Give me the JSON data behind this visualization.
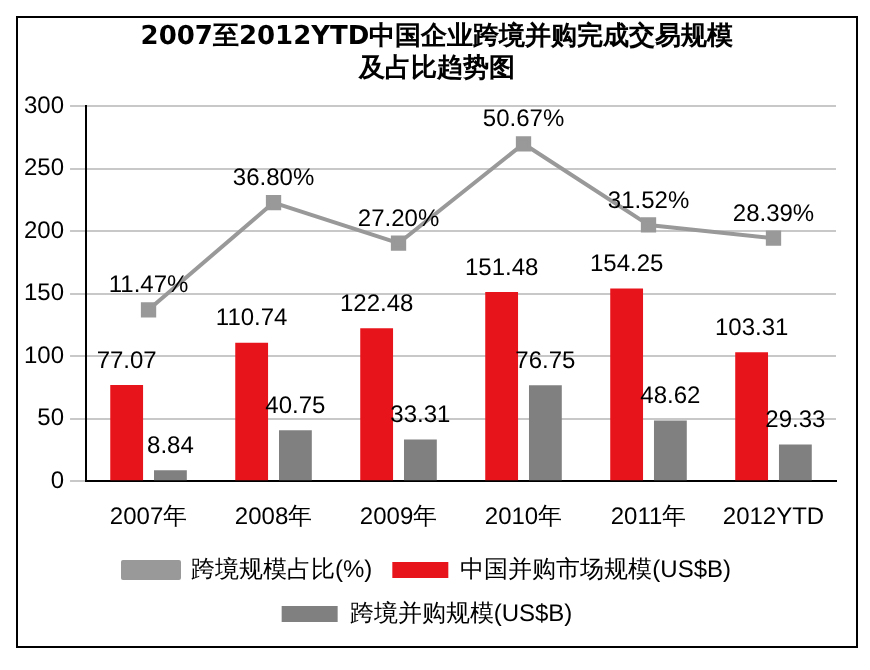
{
  "chart_data": {
    "type": "bar",
    "title": "2007至2012YTD中国企业跨境并购完成交易规模及占比趋势图",
    "categories": [
      "2007年",
      "2008年",
      "2009年",
      "2010年",
      "2011年",
      "2012YTD"
    ],
    "series": [
      {
        "name": "中国并购市场规模(US$B)",
        "color": "#e8141b",
        "values": [
          77.07,
          110.74,
          122.48,
          151.48,
          154.25,
          103.31
        ]
      },
      {
        "name": "跨境并购规模(US$B)",
        "color": "#808080",
        "values": [
          8.84,
          40.75,
          33.31,
          76.75,
          48.62,
          29.33
        ]
      },
      {
        "name": "跨境规模占比(%)",
        "type": "line",
        "axis": "y2",
        "color": "#999999",
        "values": [
          11.47,
          36.8,
          27.2,
          50.67,
          31.52,
          28.39
        ],
        "value_labels": [
          "11.47%",
          "36.80%",
          "27.20%",
          "50.67%",
          "31.52%",
          "28.39%"
        ]
      }
    ],
    "ylim": [
      0,
      300
    ],
    "yticks": [
      0,
      50,
      100,
      150,
      200,
      250,
      300
    ],
    "y2lim": [
      -29,
      59.5
    ],
    "grid": "y",
    "legend": "bottom",
    "marker": "square",
    "data_labels": true
  }
}
